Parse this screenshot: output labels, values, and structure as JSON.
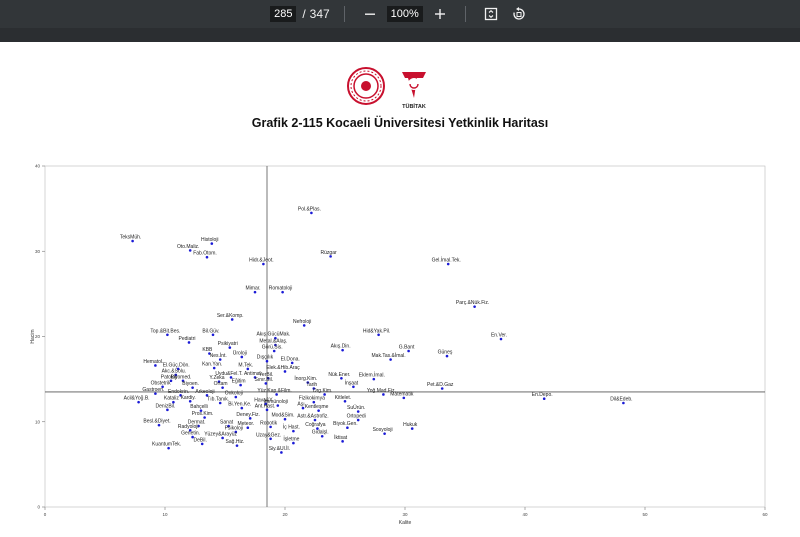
{
  "toolbar": {
    "current_page": "285",
    "page_separator": "/",
    "total_pages": "347",
    "zoom": "100%",
    "icons": [
      "minus-icon",
      "plus-icon",
      "fit-page-icon",
      "rotate-icon"
    ]
  },
  "document": {
    "logo_text": "TÜBİTAK",
    "figure_title": "Grafik 2-115 Kocaeli Üniversitesi Yetkinlik Haritası"
  },
  "colors": {
    "toolbar_bg": "#323639",
    "point": "#1a1ad6",
    "axis": "#555555"
  },
  "chart_data": {
    "type": "scatter",
    "xlabel": "Kalite",
    "ylabel": "Hacim",
    "xlim": [
      0,
      60
    ],
    "ylim": [
      0,
      40
    ],
    "xticks": [
      0,
      10,
      20,
      30,
      40,
      50,
      60
    ],
    "yticks": [
      0,
      10,
      20,
      30,
      40
    ],
    "reference_lines": {
      "x": 18.5,
      "y": 13.5
    },
    "points": [
      {
        "label": "Pol.&Plas.",
        "x": 22.2,
        "y": 34.5
      },
      {
        "label": "TeksMüh.",
        "x": 7.3,
        "y": 31.2
      },
      {
        "label": "Histoloji",
        "x": 13.9,
        "y": 30.9
      },
      {
        "label": "Oto.Maliz.",
        "x": 12.1,
        "y": 30.1
      },
      {
        "label": "Fab.Otom.",
        "x": 13.5,
        "y": 29.3
      },
      {
        "label": "Rüzgar",
        "x": 23.8,
        "y": 29.4
      },
      {
        "label": "Hidr.&Jeot.",
        "x": 18.2,
        "y": 28.5
      },
      {
        "label": "Gel.İmal.Tek.",
        "x": 33.6,
        "y": 28.5
      },
      {
        "label": "Mimar.",
        "x": 17.5,
        "y": 25.2
      },
      {
        "label": "Romatoloji",
        "x": 19.8,
        "y": 25.2
      },
      {
        "label": "Parç.&Nük.Fiz.",
        "x": 35.8,
        "y": 23.5
      },
      {
        "label": "Ser.&Komp.",
        "x": 15.6,
        "y": 22.0
      },
      {
        "label": "Nefroloji",
        "x": 21.6,
        "y": 21.3
      },
      {
        "label": "Top.&Bit.Bes.",
        "x": 10.2,
        "y": 20.2
      },
      {
        "label": "Bil.Güv.",
        "x": 14.0,
        "y": 20.2
      },
      {
        "label": "Akış.GücüMak.",
        "x": 19.2,
        "y": 19.8
      },
      {
        "label": "Hid&Yak.Pil.",
        "x": 27.8,
        "y": 20.2
      },
      {
        "label": "En.Ver.",
        "x": 38.0,
        "y": 19.7
      },
      {
        "label": "Pediatri",
        "x": 12.0,
        "y": 19.3
      },
      {
        "label": "Metal.&Alaş.",
        "x": 19.2,
        "y": 19.0
      },
      {
        "label": "Psikiyatri",
        "x": 15.4,
        "y": 18.7
      },
      {
        "label": "G.Bant",
        "x": 30.3,
        "y": 18.3
      },
      {
        "label": "Görü.Sis.",
        "x": 19.1,
        "y": 18.3
      },
      {
        "label": "Akış.Din.",
        "x": 24.8,
        "y": 18.4
      },
      {
        "label": "KBB",
        "x": 13.7,
        "y": 18.0
      },
      {
        "label": "Güneş",
        "x": 33.5,
        "y": 17.7
      },
      {
        "label": "Üroloji",
        "x": 16.4,
        "y": 17.6
      },
      {
        "label": "Nes.İnt.",
        "x": 14.6,
        "y": 17.3
      },
      {
        "label": "Mak.Tas.&İmal.",
        "x": 28.8,
        "y": 17.3
      },
      {
        "label": "Dışçılık",
        "x": 18.5,
        "y": 17.1
      },
      {
        "label": "El.Dona.",
        "x": 20.6,
        "y": 16.9
      },
      {
        "label": "Hematol.",
        "x": 9.2,
        "y": 16.6
      },
      {
        "label": "El.Güç.Dön.",
        "x": 11.1,
        "y": 16.2
      },
      {
        "label": "Kan.Yan.",
        "x": 14.1,
        "y": 16.3
      },
      {
        "label": "M.Tek.",
        "x": 16.9,
        "y": 16.2
      },
      {
        "label": "Elek.&Hib.Araç",
        "x": 20.0,
        "y": 15.9
      },
      {
        "label": "Akc.&Solu.",
        "x": 10.9,
        "y": 15.5
      },
      {
        "label": "Uydu&Fel.T.",
        "x": 15.5,
        "y": 15.2
      },
      {
        "label": "Antimal.",
        "x": 17.5,
        "y": 15.2
      },
      {
        "label": "YerBil.",
        "x": 18.6,
        "y": 15.1
      },
      {
        "label": "Nük.Ener.",
        "x": 24.7,
        "y": 15.1
      },
      {
        "label": "Eklem.İmal.",
        "x": 27.4,
        "y": 15.0
      },
      {
        "label": "Patoloji",
        "x": 10.5,
        "y": 14.8
      },
      {
        "label": "Biyomed.",
        "x": 11.5,
        "y": 14.8
      },
      {
        "label": "Y.Zeka",
        "x": 14.5,
        "y": 14.7
      },
      {
        "label": "Sınır.Bil.",
        "x": 18.4,
        "y": 14.5
      },
      {
        "label": "İnorg.Kim.",
        "x": 21.9,
        "y": 14.6
      },
      {
        "label": "Eğitim",
        "x": 16.3,
        "y": 14.3
      },
      {
        "label": "Obstetrik",
        "x": 9.8,
        "y": 14.1
      },
      {
        "label": "Biyoen.",
        "x": 12.3,
        "y": 14.0
      },
      {
        "label": "Ortam",
        "x": 14.8,
        "y": 14.0
      },
      {
        "label": "Tarih",
        "x": 22.4,
        "y": 13.9
      },
      {
        "label": "İnşaat",
        "x": 25.7,
        "y": 14.1
      },
      {
        "label": "Pet.&D.Gaz",
        "x": 33.1,
        "y": 13.9
      },
      {
        "label": "Gastroen.",
        "x": 9.2,
        "y": 13.3
      },
      {
        "label": "Endokrin.",
        "x": 11.3,
        "y": 13.1
      },
      {
        "label": "Arkeoloji",
        "x": 13.5,
        "y": 13.1
      },
      {
        "label": "Yüz.Kap.&Film.",
        "x": 19.3,
        "y": 13.2
      },
      {
        "label": "Org.Kim.",
        "x": 23.3,
        "y": 13.2
      },
      {
        "label": "Yoğ.Mad.Fiz.",
        "x": 28.2,
        "y": 13.2
      },
      {
        "label": "Onkoloji",
        "x": 15.9,
        "y": 12.9
      },
      {
        "label": "Matematik",
        "x": 29.9,
        "y": 12.8
      },
      {
        "label": "En.Depo.",
        "x": 41.6,
        "y": 12.7
      },
      {
        "label": "Acil&Yoğ.B.",
        "x": 7.8,
        "y": 12.3
      },
      {
        "label": "Kataliz",
        "x": 10.7,
        "y": 12.3
      },
      {
        "label": "Kardiy.",
        "x": 12.1,
        "y": 12.4
      },
      {
        "label": "Tıb.Tanık.",
        "x": 14.6,
        "y": 12.2
      },
      {
        "label": "Hava&Y.",
        "x": 18.4,
        "y": 12.1
      },
      {
        "label": "Fizikokimya",
        "x": 22.4,
        "y": 12.3
      },
      {
        "label": "Kitlelet.",
        "x": 25.0,
        "y": 12.4
      },
      {
        "label": "Dil&Edeb.",
        "x": 48.2,
        "y": 12.2
      },
      {
        "label": "İmmünoloji",
        "x": 19.4,
        "y": 11.9
      },
      {
        "label": "Bi.Yen.Ke.",
        "x": 16.4,
        "y": 11.6
      },
      {
        "label": "Ant.Hast.",
        "x": 18.5,
        "y": 11.4
      },
      {
        "label": "Aşı",
        "x": 21.5,
        "y": 11.6
      },
      {
        "label": "Kentleşme",
        "x": 22.8,
        "y": 11.3
      },
      {
        "label": "SuÜrün.",
        "x": 26.1,
        "y": 11.2
      },
      {
        "label": "DenizBil.",
        "x": 10.2,
        "y": 11.4
      },
      {
        "label": "Bahçelli",
        "x": 13.0,
        "y": 11.3
      },
      {
        "label": "Pros.Kim.",
        "x": 13.3,
        "y": 10.5
      },
      {
        "label": "Deney.Fiz.",
        "x": 17.1,
        "y": 10.4
      },
      {
        "label": "Mod&Sim.",
        "x": 20.0,
        "y": 10.3
      },
      {
        "label": "Astr.&Astrofiz.",
        "x": 22.5,
        "y": 10.2
      },
      {
        "label": "Ortopedi",
        "x": 26.1,
        "y": 10.2
      },
      {
        "label": "Besl.&Diyet.",
        "x": 9.5,
        "y": 9.6
      },
      {
        "label": "Dermat.",
        "x": 12.8,
        "y": 9.5
      },
      {
        "label": "Sanat",
        "x": 15.3,
        "y": 9.5
      },
      {
        "label": "Meteor.",
        "x": 16.9,
        "y": 9.3
      },
      {
        "label": "Robotik",
        "x": 18.8,
        "y": 9.4
      },
      {
        "label": "Coğrafya",
        "x": 22.7,
        "y": 9.2
      },
      {
        "label": "Biyok.Gen.",
        "x": 25.2,
        "y": 9.3
      },
      {
        "label": "Hukuk",
        "x": 30.6,
        "y": 9.2
      },
      {
        "label": "Radyoloji",
        "x": 12.1,
        "y": 9.0
      },
      {
        "label": "Psikoloji",
        "x": 15.9,
        "y": 8.8
      },
      {
        "label": "İç Hast.",
        "x": 20.7,
        "y": 8.9
      },
      {
        "label": "Sosyoloji",
        "x": 28.3,
        "y": 8.6
      },
      {
        "label": "Genetin.",
        "x": 12.3,
        "y": 8.2
      },
      {
        "label": "Yüzey&Arayüz",
        "x": 14.8,
        "y": 8.1
      },
      {
        "label": "Uzay&Gez.",
        "x": 18.8,
        "y": 8.0
      },
      {
        "label": "Gıdalşl.",
        "x": 23.1,
        "y": 8.3
      },
      {
        "label": "İşletme",
        "x": 20.7,
        "y": 7.5
      },
      {
        "label": "İktisat",
        "x": 24.8,
        "y": 7.7
      },
      {
        "label": "DeBil.",
        "x": 13.1,
        "y": 7.4
      },
      {
        "label": "Sağ.Hiz.",
        "x": 16.0,
        "y": 7.2
      },
      {
        "label": "KuantumTek.",
        "x": 10.3,
        "y": 6.9
      },
      {
        "label": "Siy.&Ul.İl.",
        "x": 19.7,
        "y": 6.4
      }
    ]
  }
}
